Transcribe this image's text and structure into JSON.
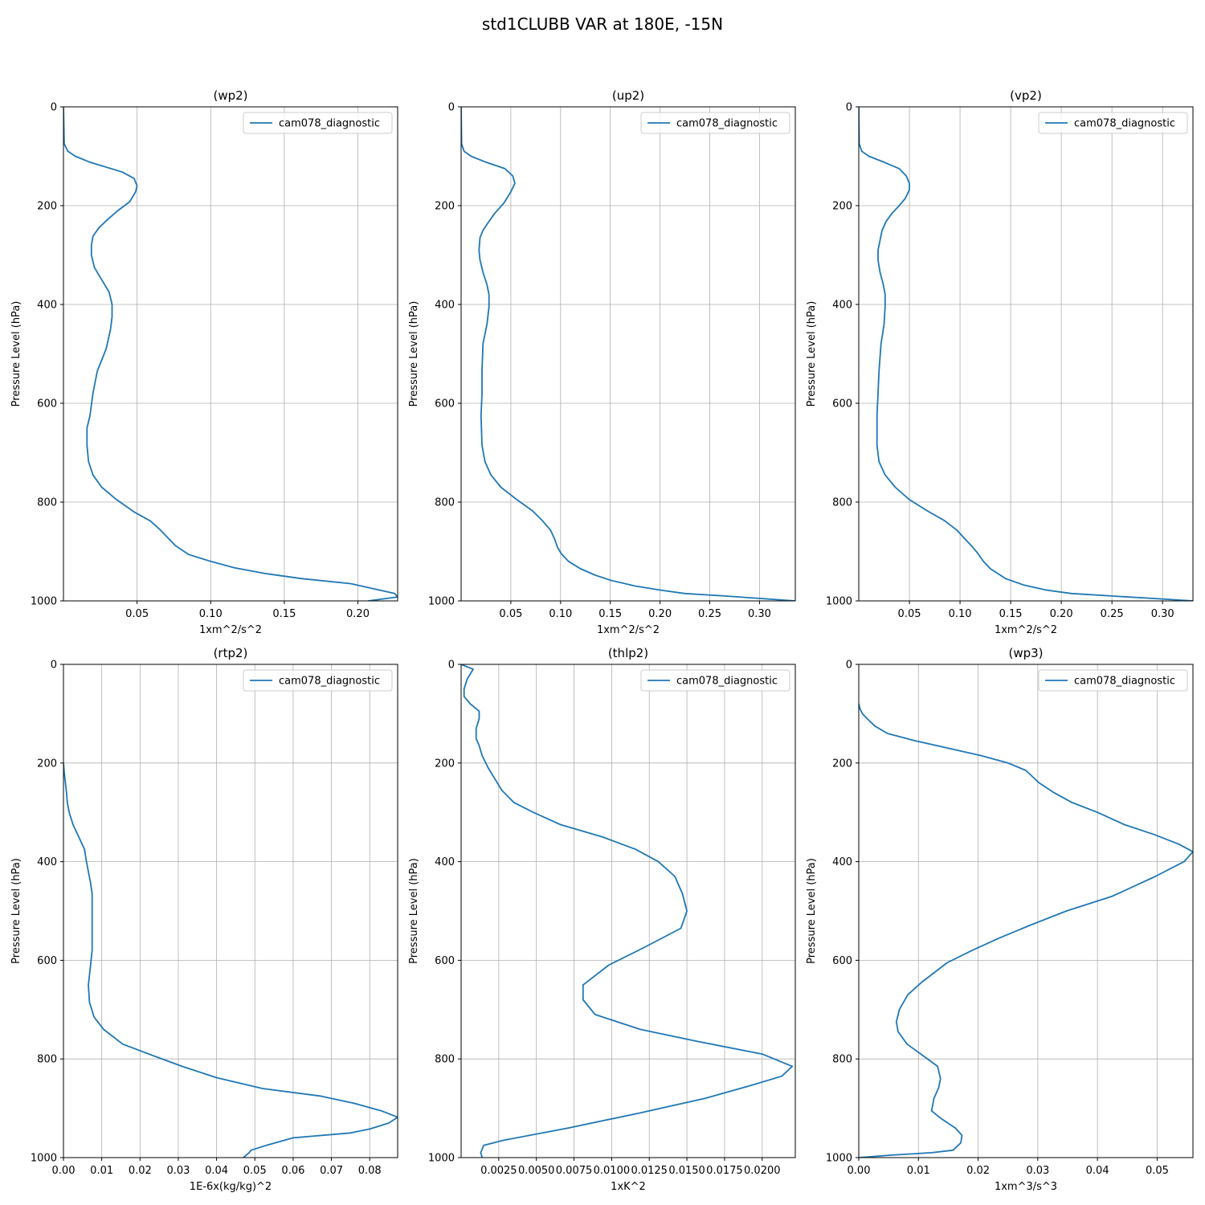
{
  "figure": {
    "title": "std1CLUBB VAR at 180E, -15N",
    "line_color": "#1f77b4"
  },
  "chart_data": [
    {
      "type": "line",
      "title": "(wp2)",
      "xlabel": "1xm^2/s^2",
      "ylabel": "Pressure Level (hPa)",
      "xlim": [
        0.0,
        0.227
      ],
      "ylim": [
        1000,
        0
      ],
      "xticks": [
        0.05,
        0.1,
        0.15,
        0.2
      ],
      "xtick_labels": [
        "0.05",
        "0.10",
        "0.15",
        "0.20"
      ],
      "yticks": [
        0,
        200,
        400,
        600,
        800,
        1000
      ],
      "grid": true,
      "legend": "upper right",
      "series": [
        {
          "name": "cam078_diagnostic",
          "x": [
            0.0,
            0.0005,
            0.003,
            0.008,
            0.018,
            0.04,
            0.048,
            0.05,
            0.049,
            0.045,
            0.037,
            0.03,
            0.024,
            0.02,
            0.019,
            0.019,
            0.021,
            0.025,
            0.031,
            0.033,
            0.033,
            0.032,
            0.029,
            0.023,
            0.02,
            0.018,
            0.016,
            0.016,
            0.017,
            0.02,
            0.026,
            0.036,
            0.048,
            0.059,
            0.066,
            0.076,
            0.085,
            0.1,
            0.116,
            0.138,
            0.162,
            0.195,
            0.21,
            0.225,
            0.227,
            0.207
          ],
          "y": [
            0,
            75,
            90,
            100,
            112,
            132,
            145,
            160,
            172,
            192,
            210,
            228,
            245,
            262,
            280,
            300,
            325,
            345,
            375,
            400,
            425,
            450,
            490,
            535,
            580,
            625,
            650,
            685,
            718,
            745,
            770,
            795,
            820,
            838,
            857,
            888,
            906,
            920,
            933,
            945,
            955,
            965,
            975,
            985,
            992,
            1000
          ]
        }
      ]
    },
    {
      "type": "line",
      "title": "(up2)",
      "xlabel": "1xm^2/s^2",
      "ylabel": "Pressure Level (hPa)",
      "xlim": [
        0.0,
        0.336
      ],
      "ylim": [
        1000,
        0
      ],
      "xticks": [
        0.05,
        0.1,
        0.15,
        0.2,
        0.25,
        0.3
      ],
      "xtick_labels": [
        "0.05",
        "0.10",
        "0.15",
        "0.20",
        "0.25",
        "0.30"
      ],
      "yticks": [
        0,
        200,
        400,
        600,
        800,
        1000
      ],
      "grid": true,
      "legend": "upper right",
      "series": [
        {
          "name": "cam078_diagnostic",
          "x": [
            0.0,
            0.0005,
            0.003,
            0.01,
            0.025,
            0.044,
            0.052,
            0.054,
            0.05,
            0.043,
            0.034,
            0.027,
            0.022,
            0.019,
            0.018,
            0.019,
            0.022,
            0.026,
            0.028,
            0.028,
            0.026,
            0.022,
            0.021,
            0.021,
            0.02,
            0.021,
            0.024,
            0.03,
            0.04,
            0.056,
            0.072,
            0.082,
            0.09,
            0.094,
            0.097,
            0.101,
            0.108,
            0.12,
            0.135,
            0.15,
            0.175,
            0.2,
            0.225,
            0.265,
            0.3,
            0.336
          ],
          "y": [
            0,
            75,
            90,
            100,
            112,
            125,
            140,
            155,
            172,
            195,
            215,
            235,
            250,
            265,
            290,
            310,
            335,
            360,
            380,
            405,
            440,
            480,
            535,
            580,
            625,
            685,
            718,
            745,
            770,
            795,
            818,
            838,
            857,
            875,
            892,
            905,
            920,
            935,
            948,
            958,
            970,
            978,
            985,
            990,
            995,
            1000
          ]
        }
      ]
    },
    {
      "type": "line",
      "title": "(vp2)",
      "xlabel": "1xm^2/s^2",
      "ylabel": "Pressure Level (hPa)",
      "xlim": [
        0.0,
        0.33
      ],
      "ylim": [
        1000,
        0
      ],
      "xticks": [
        0.05,
        0.1,
        0.15,
        0.2,
        0.25,
        0.3
      ],
      "xtick_labels": [
        "0.05",
        "0.10",
        "0.15",
        "0.20",
        "0.25",
        "0.30"
      ],
      "yticks": [
        0,
        200,
        400,
        600,
        800,
        1000
      ],
      "grid": true,
      "legend": "upper right",
      "series": [
        {
          "name": "cam078_diagnostic",
          "x": [
            0.0,
            0.0005,
            0.003,
            0.01,
            0.025,
            0.04,
            0.047,
            0.05,
            0.05,
            0.046,
            0.04,
            0.033,
            0.027,
            0.023,
            0.021,
            0.019,
            0.019,
            0.021,
            0.024,
            0.026,
            0.026,
            0.025,
            0.022,
            0.02,
            0.019,
            0.018,
            0.018,
            0.02,
            0.026,
            0.036,
            0.05,
            0.068,
            0.085,
            0.097,
            0.105,
            0.112,
            0.118,
            0.123,
            0.13,
            0.145,
            0.163,
            0.185,
            0.21,
            0.25,
            0.29,
            0.33
          ],
          "y": [
            0,
            75,
            90,
            100,
            112,
            125,
            140,
            155,
            168,
            185,
            200,
            215,
            232,
            250,
            270,
            290,
            310,
            335,
            358,
            380,
            405,
            440,
            480,
            535,
            580,
            625,
            685,
            718,
            745,
            770,
            795,
            818,
            838,
            857,
            875,
            890,
            905,
            920,
            935,
            955,
            968,
            978,
            985,
            990,
            995,
            1000
          ]
        }
      ]
    },
    {
      "type": "line",
      "title": "(rtp2)",
      "xlabel": "1E-6x(kg/kg)^2",
      "ylabel": "Pressure Level (hPa)",
      "xlim": [
        0.0,
        0.0873
      ],
      "ylim": [
        1000,
        0
      ],
      "xticks": [
        0.0,
        0.01,
        0.02,
        0.03,
        0.04,
        0.05,
        0.06,
        0.07,
        0.08
      ],
      "xtick_labels": [
        "0.00",
        "0.01",
        "0.02",
        "0.03",
        "0.04",
        "0.05",
        "0.06",
        "0.07",
        "0.08"
      ],
      "yticks": [
        0,
        200,
        400,
        600,
        800,
        1000
      ],
      "grid": true,
      "legend": "upper right",
      "series": [
        {
          "name": "cam078_diagnostic",
          "x": [
            0.0,
            0.0002,
            0.0005,
            0.0008,
            0.001,
            0.0015,
            0.0025,
            0.004,
            0.0055,
            0.006,
            0.0065,
            0.007,
            0.0075,
            0.0075,
            0.0075,
            0.0075,
            0.0075,
            0.0075,
            0.007,
            0.0065,
            0.0068,
            0.008,
            0.0105,
            0.0155,
            0.024,
            0.031,
            0.04,
            0.052,
            0.067,
            0.076,
            0.083,
            0.0873,
            0.085,
            0.08,
            0.075,
            0.06,
            0.053,
            0.049,
            0.0485,
            0.047
          ],
          "y": [
            200,
            220,
            240,
            260,
            280,
            300,
            325,
            350,
            375,
            400,
            420,
            440,
            465,
            480,
            500,
            520,
            550,
            580,
            615,
            650,
            685,
            715,
            740,
            770,
            795,
            815,
            838,
            860,
            875,
            890,
            905,
            918,
            930,
            942,
            950,
            960,
            975,
            985,
            990,
            1000
          ]
        }
      ]
    },
    {
      "type": "line",
      "title": "(thlp2)",
      "xlabel": "1xK^2",
      "ylabel": "Pressure Level (hPa)",
      "xlim": [
        0.0,
        0.0222
      ],
      "ylim": [
        1000,
        0
      ],
      "xticks": [
        0.0025,
        0.005,
        0.0075,
        0.01,
        0.0125,
        0.015,
        0.0175,
        0.02
      ],
      "xtick_labels": [
        "0.0025",
        "0.0050",
        "0.0075",
        "0.0100",
        "0.0125",
        "0.0150",
        "0.0175",
        "0.0200"
      ],
      "yticks": [
        0,
        200,
        400,
        600,
        800,
        1000
      ],
      "grid": true,
      "legend": "upper right",
      "series": [
        {
          "name": "cam078_diagnostic",
          "x": [
            0.0,
            0.0008,
            0.0004,
            0.0002,
            0.0002,
            0.0006,
            0.0012,
            0.0012,
            0.001,
            0.001,
            0.0012,
            0.0014,
            0.0018,
            0.0022,
            0.0027,
            0.0035,
            0.0048,
            0.0066,
            0.0094,
            0.0116,
            0.0131,
            0.0142,
            0.0147,
            0.015,
            0.0146,
            0.0121,
            0.0098,
            0.0081,
            0.0081,
            0.0089,
            0.0119,
            0.0158,
            0.02,
            0.022,
            0.0213,
            0.0191,
            0.0162,
            0.0118,
            0.0071,
            0.0028,
            0.0015,
            0.0013,
            0.0014
          ],
          "y": [
            0,
            10,
            30,
            50,
            65,
            80,
            95,
            110,
            130,
            150,
            165,
            185,
            210,
            230,
            255,
            280,
            300,
            325,
            350,
            375,
            400,
            430,
            465,
            500,
            535,
            575,
            610,
            650,
            680,
            710,
            740,
            765,
            790,
            815,
            835,
            855,
            880,
            910,
            940,
            965,
            975,
            990,
            1000
          ]
        }
      ]
    },
    {
      "type": "line",
      "title": "(wp3)",
      "xlabel": "1xm^3/s^3",
      "ylabel": "Pressure Level (hPa)",
      "xlim": [
        0.0,
        0.056
      ],
      "ylim": [
        1000,
        0
      ],
      "xticks": [
        0.0,
        0.01,
        0.02,
        0.03,
        0.04,
        0.05
      ],
      "xtick_labels": [
        "0.00",
        "0.01",
        "0.02",
        "0.03",
        "0.04",
        "0.05"
      ],
      "yticks": [
        0,
        200,
        400,
        600,
        800,
        1000
      ],
      "grid": true,
      "legend": "upper right",
      "series": [
        {
          "name": "cam078_diagnostic",
          "x": [
            0.0,
            0.0002,
            0.0006,
            0.0014,
            0.0027,
            0.0048,
            0.0095,
            0.015,
            0.0205,
            0.025,
            0.028,
            0.0302,
            0.0327,
            0.0357,
            0.04,
            0.0445,
            0.0495,
            0.0537,
            0.056,
            0.0545,
            0.0497,
            0.0425,
            0.0348,
            0.0285,
            0.0235,
            0.019,
            0.0148,
            0.0105,
            0.0082,
            0.0068,
            0.0063,
            0.0066,
            0.0081,
            0.0104,
            0.0132,
            0.0137,
            0.0134,
            0.0126,
            0.0122,
            0.0137,
            0.0162,
            0.0173,
            0.0171,
            0.0158,
            0.0122,
            0.0055,
            0.0
          ],
          "y": [
            80,
            90,
            100,
            110,
            125,
            140,
            155,
            170,
            185,
            200,
            215,
            240,
            260,
            280,
            300,
            325,
            345,
            365,
            380,
            400,
            430,
            470,
            500,
            530,
            555,
            580,
            605,
            645,
            670,
            700,
            725,
            745,
            770,
            790,
            815,
            840,
            858,
            880,
            905,
            920,
            940,
            955,
            970,
            985,
            990,
            995,
            1000
          ]
        }
      ]
    }
  ]
}
